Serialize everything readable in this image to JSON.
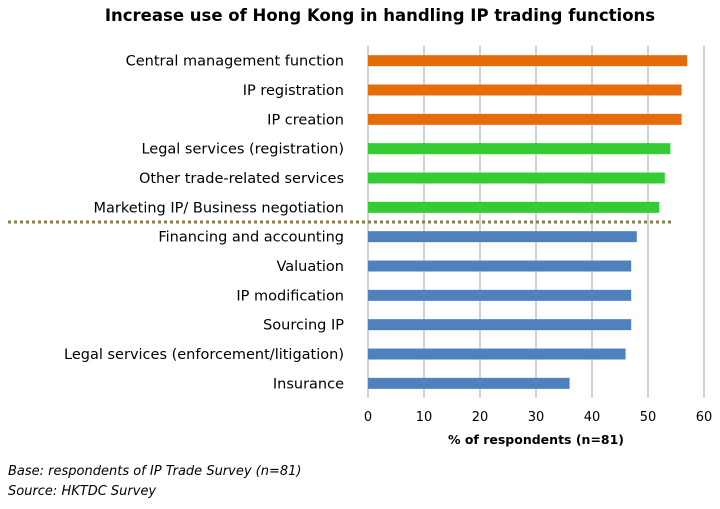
{
  "chart_data": {
    "type": "bar",
    "orientation": "horizontal",
    "title": "Increase use of Hong Kong in handling IP trading functions",
    "xlabel": "% of respondents (n=81)",
    "ylabel": "",
    "xlim": [
      0,
      60
    ],
    "xticks": [
      0,
      10,
      20,
      30,
      40,
      50,
      60
    ],
    "grid": true,
    "categories": [
      "Central management function",
      "IP registration",
      "IP creation",
      "Legal services (registration)",
      "Other trade-related services",
      "Marketing IP/ Business negotiation",
      "Financing and accounting",
      "Valuation",
      "IP modification",
      "Sourcing IP",
      "Legal services (enforcement/litigation)",
      "Insurance"
    ],
    "values": [
      57,
      56,
      56,
      54,
      53,
      52,
      48,
      47,
      47,
      47,
      46,
      36
    ],
    "bar_colors": [
      "#e46c0a",
      "#e46c0a",
      "#e46c0a",
      "#33cc33",
      "#33cc33",
      "#33cc33",
      "#4f81bd",
      "#4f81bd",
      "#4f81bd",
      "#4f81bd",
      "#4f81bd",
      "#4f81bd"
    ],
    "divider_color": "#8b7d4a"
  },
  "notes": {
    "base": "Base: respondents of IP Trade Survey (n=81)",
    "source": "Source: HKTDC Survey"
  }
}
